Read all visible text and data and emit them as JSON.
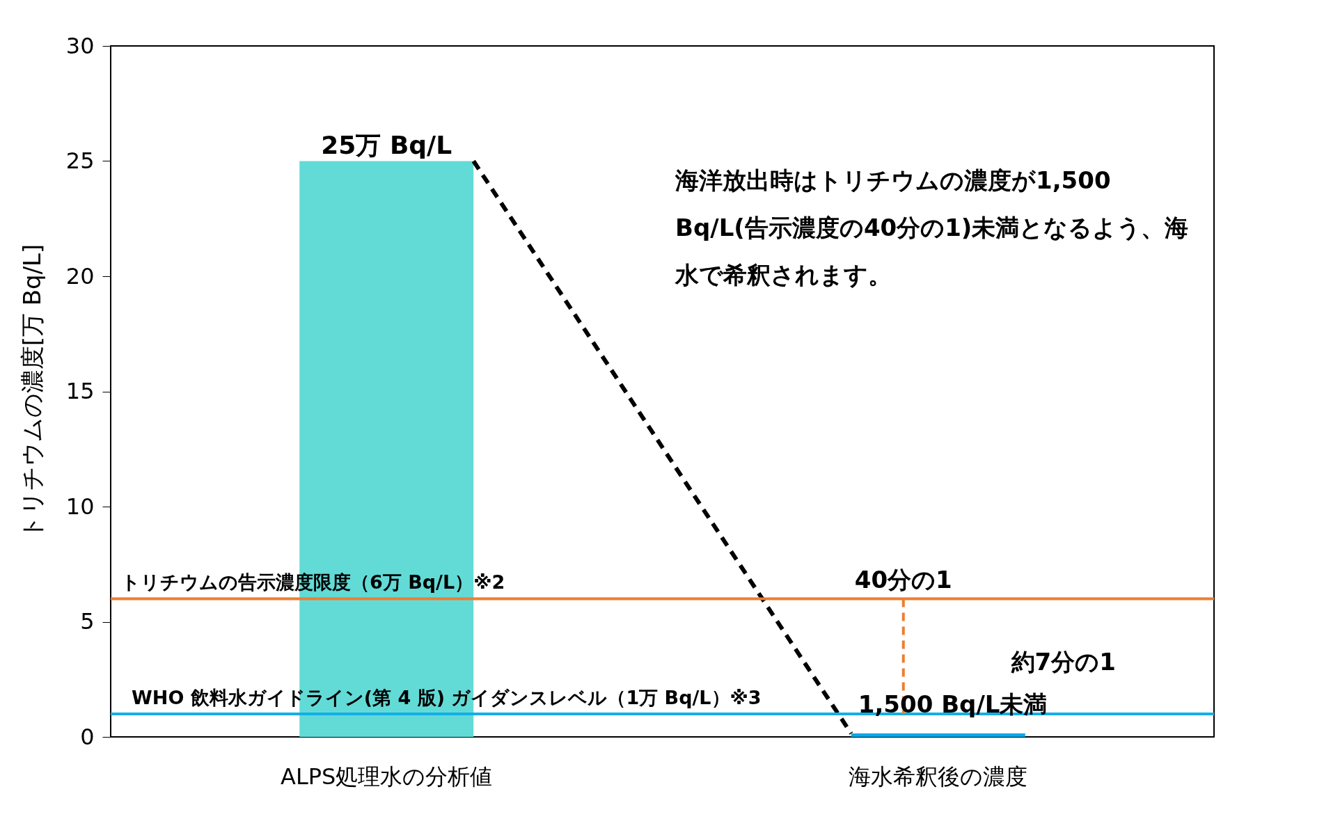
{
  "chart_data": {
    "type": "bar",
    "categories": [
      "ALPS処理水の分析値",
      "海水希釈後の濃度"
    ],
    "ylabel": "トリチウムの濃度[万 Bq/L]",
    "ylim": [
      0,
      30
    ],
    "yticks": [
      0,
      5,
      10,
      15,
      20,
      25,
      30
    ],
    "grid": false,
    "colors": [
      "#62dbd7",
      "#0fa7e6"
    ],
    "values": [
      25,
      0.15
    ],
    "value_labels": [
      "25万 Bq/L",
      null
    ],
    "ref_lines": [
      {
        "axis": "y",
        "value": 6,
        "label": "トリチウムの告示濃度限度（6万 Bq/L）※2",
        "color": "#ed7d31"
      },
      {
        "axis": "y",
        "value": 1,
        "label": "WHO 飲料水ガイドライン(第 4 版) ガイダンスレベル（1万 Bq/L）※3",
        "color": "#14aee8"
      }
    ],
    "annotations": [
      {
        "text": "40分の1",
        "x": "海水希釈後の濃度",
        "y": 6
      },
      "約7分の1",
      "海洋放出時はトリチウムの濃度が1,500 Bq/L(告示濃度の40分の1)未満となるよう、海水で希釈されます。",
      {
        "text": "1,500 Bq/L未満",
        "x": "海水希釈後の濃度",
        "y": 0.15
      }
    ]
  }
}
